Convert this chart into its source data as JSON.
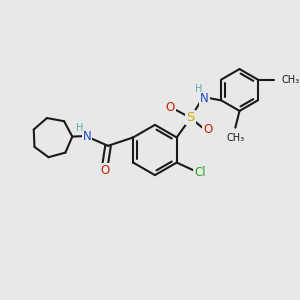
{
  "bg_color": "#e8e8e8",
  "bond_color": "#1a1a1a",
  "bond_width": 1.5,
  "atom_colors": {
    "C": "#1a1a1a",
    "H": "#5aabab",
    "N": "#2244cc",
    "O": "#cc2200",
    "S": "#ccaa00",
    "Cl": "#22aa22"
  },
  "font_size": 8.5,
  "fig_size": [
    3.0,
    3.0
  ],
  "dpi": 100
}
